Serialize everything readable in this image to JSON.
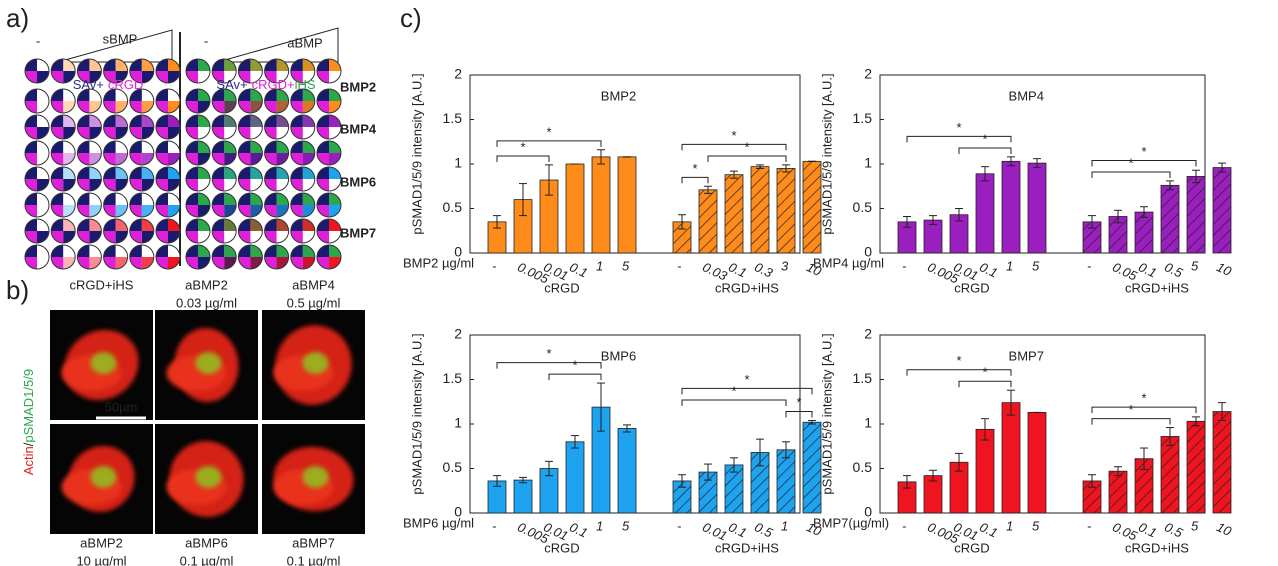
{
  "panel_a": {
    "label": "a)",
    "soluble": {
      "blank": "-",
      "gradient": "sBMP",
      "caption": [
        "SAv+",
        "cRGD"
      ]
    },
    "adsorbed": {
      "blank": "-",
      "gradient": "aBMP",
      "caption": [
        "SAv+",
        "cRGD",
        "+",
        "iHS"
      ]
    },
    "rows": [
      {
        "label": "BMP2",
        "color": "#ff8c1a"
      },
      {
        "label": "BMP4",
        "color": "#9b1fbf"
      },
      {
        "label": "BMP6",
        "color": "#1ea3f0"
      },
      {
        "label": "BMP7",
        "color": "#f01420"
      }
    ]
  },
  "panel_b": {
    "label": "b)",
    "y_label": [
      "Actin",
      "/",
      "pSMAD1/5/9"
    ],
    "scale_bar": "50µm",
    "cells": [
      {
        "name": "cRGD+iHS",
        "color": "#222222"
      },
      {
        "name": "aBMP2",
        "dose": "0.03 µg/ml",
        "color": "#ff8c1a"
      },
      {
        "name": "aBMP4",
        "dose": "0.5 µg/ml",
        "color": "#9b1fbf"
      },
      {
        "name": "aBMP2",
        "dose": "10 µg/ml",
        "color": "#ff8c1a"
      },
      {
        "name": "aBMP6",
        "dose": "0.1 µg/ml",
        "color": "#1ea3f0"
      },
      {
        "name": "aBMP7",
        "dose": "0.1 µg/ml",
        "color": "#f01420"
      }
    ]
  },
  "panel_c": {
    "label": "c)"
  },
  "chart_data": [
    {
      "type": "bar",
      "title": "BMP2",
      "color": "#ff8c1a",
      "ylabel": "pSMAD1/5/9 intensity [A.U.]",
      "x_label": "BMP2 µg/ml",
      "ylim": [
        0,
        2
      ],
      "yticks": [
        0,
        0.5,
        1,
        1.5,
        2
      ],
      "series": [
        {
          "name": "cRGD",
          "hatch": false,
          "categories": [
            "-",
            "0.005",
            "0.01",
            "0.1",
            "1",
            "5"
          ],
          "values": [
            0.35,
            0.6,
            0.82,
            1.0,
            1.08,
            1.08
          ],
          "errors": [
            0.07,
            0.18,
            0.17,
            0,
            0.08,
            0
          ]
        },
        {
          "name": "cRGD+iHS",
          "hatch": true,
          "categories": [
            "-",
            "0.03",
            "0.1",
            "0.3",
            "3",
            "10"
          ],
          "values": [
            0.35,
            0.71,
            0.88,
            0.97,
            0.95,
            1.03
          ],
          "errors": [
            0.08,
            0.04,
            0.04,
            0.02,
            0.04,
            0
          ]
        }
      ],
      "brackets": [
        {
          "series": 0,
          "from": 0,
          "to": 2,
          "label": "*"
        },
        {
          "series": 0,
          "from": 0,
          "to": 4,
          "label": "*"
        },
        {
          "series": 1,
          "from": 0,
          "to": 1,
          "label": "*"
        },
        {
          "series": 1,
          "from": 1,
          "to": 4,
          "label": "*"
        },
        {
          "series": 1,
          "from": 0,
          "to": 4,
          "label": "*"
        }
      ]
    },
    {
      "type": "bar",
      "title": "BMP4",
      "color": "#9b1fbf",
      "ylabel": "pSMAD1/5/9 intensity [A.U.]",
      "x_label": "BMP4 µg/ml",
      "ylim": [
        0,
        2
      ],
      "yticks": [
        0,
        0.5,
        1,
        1.5,
        2
      ],
      "series": [
        {
          "name": "cRGD",
          "hatch": false,
          "categories": [
            "-",
            "0.005",
            "0.01",
            "0.1",
            "1",
            "5"
          ],
          "values": [
            0.35,
            0.37,
            0.43,
            0.89,
            1.03,
            1.01
          ],
          "errors": [
            0.06,
            0.05,
            0.07,
            0.08,
            0.05,
            0.05
          ]
        },
        {
          "name": "cRGD+iHS",
          "hatch": true,
          "categories": [
            "-",
            "0.05",
            "0.1",
            "0.5",
            "5",
            "10"
          ],
          "values": [
            0.35,
            0.41,
            0.46,
            0.76,
            0.86,
            0.96
          ],
          "errors": [
            0.07,
            0.07,
            0.06,
            0.05,
            0.07,
            0.05
          ]
        }
      ],
      "brackets": [
        {
          "series": 0,
          "from": 2,
          "to": 4,
          "label": "*"
        },
        {
          "series": 0,
          "from": 0,
          "to": 4,
          "label": "*"
        },
        {
          "series": 1,
          "from": 0,
          "to": 3,
          "label": "*"
        },
        {
          "series": 1,
          "from": 0,
          "to": 4,
          "label": "*"
        }
      ]
    },
    {
      "type": "bar",
      "title": "BMP6",
      "color": "#1ea3f0",
      "ylabel": "pSMAD1/5/9 intensity [A.U.]",
      "x_label": "BMP6 µg/ml",
      "ylim": [
        0,
        2
      ],
      "yticks": [
        0,
        0.5,
        1,
        1.5,
        2
      ],
      "series": [
        {
          "name": "cRGD",
          "hatch": false,
          "categories": [
            "-",
            "0.005",
            "0.01",
            "0.1",
            "1",
            "5"
          ],
          "values": [
            0.36,
            0.37,
            0.5,
            0.8,
            1.19,
            0.95
          ],
          "errors": [
            0.06,
            0.03,
            0.08,
            0.07,
            0.27,
            0.04
          ]
        },
        {
          "name": "cRGD+iHS",
          "hatch": true,
          "categories": [
            "-",
            "0.01",
            "0.1",
            "0.5",
            "1",
            "10"
          ],
          "values": [
            0.36,
            0.46,
            0.54,
            0.68,
            0.71,
            1.02
          ],
          "errors": [
            0.07,
            0.09,
            0.08,
            0.15,
            0.09,
            0.02
          ]
        }
      ],
      "brackets": [
        {
          "series": 0,
          "from": 2,
          "to": 4,
          "label": "*"
        },
        {
          "series": 0,
          "from": 0,
          "to": 4,
          "label": "*"
        },
        {
          "series": 1,
          "from": 4,
          "to": 5,
          "label": "*"
        },
        {
          "series": 1,
          "from": 0,
          "to": 4,
          "label": "*"
        },
        {
          "series": 1,
          "from": 0,
          "to": 5,
          "label": "*"
        }
      ]
    },
    {
      "type": "bar",
      "title": "BMP7",
      "color": "#f01420",
      "ylabel": "pSMAD1/5/9 intensity [A.U.]",
      "x_label": "BMP7(µg/ml)",
      "ylim": [
        0,
        2
      ],
      "yticks": [
        0,
        0.5,
        1,
        1.5,
        2
      ],
      "series": [
        {
          "name": "cRGD",
          "hatch": false,
          "categories": [
            "-",
            "0.005",
            "0.01",
            "0.1",
            "1",
            "5"
          ],
          "values": [
            0.35,
            0.42,
            0.57,
            0.94,
            1.24,
            1.13
          ],
          "errors": [
            0.07,
            0.06,
            0.1,
            0.12,
            0.14,
            0
          ]
        },
        {
          "name": "cRGD+iHS",
          "hatch": true,
          "categories": [
            "-",
            "0.05",
            "0.1",
            "0.5",
            "5",
            "10"
          ],
          "values": [
            0.36,
            0.47,
            0.61,
            0.86,
            1.03,
            1.14
          ],
          "errors": [
            0.07,
            0.05,
            0.12,
            0.1,
            0.05,
            0.1
          ]
        }
      ],
      "brackets": [
        {
          "series": 0,
          "from": 2,
          "to": 4,
          "label": "*"
        },
        {
          "series": 0,
          "from": 0,
          "to": 4,
          "label": "*"
        },
        {
          "series": 1,
          "from": 0,
          "to": 3,
          "label": "*"
        },
        {
          "series": 1,
          "from": 0,
          "to": 4,
          "label": "*"
        }
      ]
    }
  ]
}
